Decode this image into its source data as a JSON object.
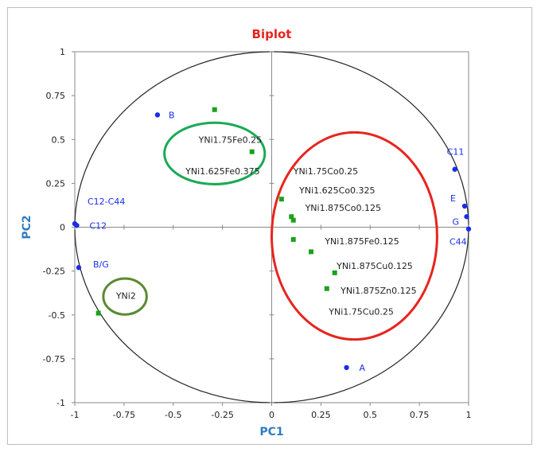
{
  "chart_data": {
    "type": "scatter",
    "title": "Biplot",
    "xlabel": "PC1",
    "ylabel": "PC2",
    "xlim": [
      -1,
      1
    ],
    "ylim": [
      -1,
      1
    ],
    "x_ticks": [
      "-1",
      "-0.75",
      "-0.5",
      "-0.25",
      "0",
      "0.25",
      "0.5",
      "0.75",
      "1"
    ],
    "y_ticks": [
      "1",
      "0.75",
      "0.5",
      "0.25",
      "0",
      "-0.25",
      "-0.5",
      "-0.75",
      "-1"
    ],
    "grid": false,
    "unit_circle": true,
    "variables": {
      "color": "#1a2ee8",
      "points": [
        {
          "label": "B",
          "x": -0.58,
          "y": 0.64
        },
        {
          "label": "C11",
          "x": 0.93,
          "y": 0.33
        },
        {
          "label": "E",
          "x": 0.98,
          "y": 0.12
        },
        {
          "label": "G",
          "x": 0.99,
          "y": 0.06
        },
        {
          "label": "C44",
          "x": 1.0,
          "y": -0.01
        },
        {
          "label": "C12-C44",
          "x": -1.0,
          "y": 0.02
        },
        {
          "label": "C12",
          "x": -0.99,
          "y": 0.01
        },
        {
          "label": "B/G",
          "x": -0.98,
          "y": -0.23
        },
        {
          "label": "A",
          "x": 0.38,
          "y": -0.8
        }
      ]
    },
    "observations": {
      "color": "#19a319",
      "points": [
        {
          "label": "YNi1.75Fe0.25",
          "x": -0.29,
          "y": 0.67
        },
        {
          "label": "YNi1.625Fe0.375",
          "x": -0.1,
          "y": 0.43
        },
        {
          "label": "YNi1.75Co0.25",
          "x": 0.05,
          "y": 0.16
        },
        {
          "label": "YNi1.625Co0.325",
          "x": 0.1,
          "y": 0.06
        },
        {
          "label": "YNi1.875Co0.125",
          "x": 0.11,
          "y": 0.04
        },
        {
          "label": "YNi1.875Fe0.125",
          "x": 0.11,
          "y": -0.07
        },
        {
          "label": "YNi1.875Cu0.125",
          "x": 0.2,
          "y": -0.14
        },
        {
          "label": "YNi1.875Zn0.125",
          "x": 0.32,
          "y": -0.26
        },
        {
          "label": "YNi1.75Cu0.25",
          "x": 0.28,
          "y": -0.35
        },
        {
          "label": "YNi2",
          "x": -0.88,
          "y": -0.49
        }
      ]
    },
    "groupings": [
      {
        "color": "#1aaa55",
        "members": [
          "YNi1.75Fe0.25",
          "YNi1.625Fe0.375"
        ]
      },
      {
        "color": "#e8241e",
        "members": [
          "YNi1.75Co0.25",
          "YNi1.625Co0.325",
          "YNi1.875Co0.125",
          "YNi1.875Fe0.125",
          "YNi1.875Cu0.125",
          "YNi1.875Zn0.125",
          "YNi1.75Cu0.25"
        ]
      },
      {
        "color": "#5a8a32",
        "members": [
          "YNi2"
        ]
      }
    ],
    "title_color": "#e8241e",
    "axis_label_color": "#2e7dc0"
  }
}
